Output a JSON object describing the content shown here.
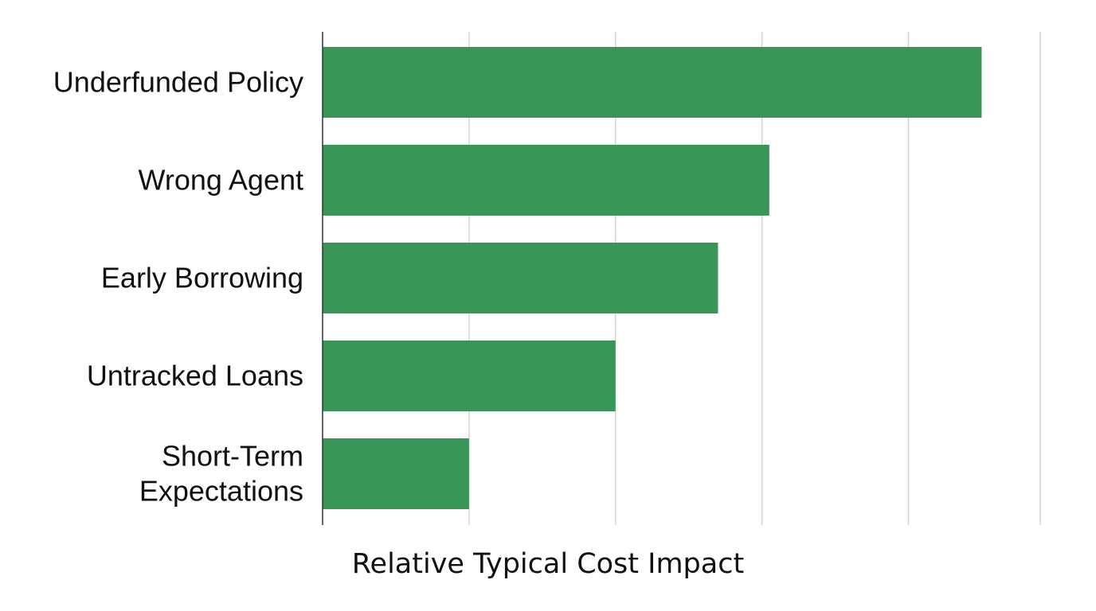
{
  "chart_data": {
    "type": "bar",
    "orientation": "horizontal",
    "categories": [
      [
        "Underfunded Policy"
      ],
      [
        "Wrong Agent"
      ],
      [
        "Early Borrowing"
      ],
      [
        "Untracked Loans"
      ],
      [
        "Short-Term",
        "Expectations"
      ]
    ],
    "values": [
      4.5,
      3.05,
      2.7,
      2.0,
      1.0
    ],
    "xlim": [
      0,
      4.9
    ],
    "gridlines": [
      1,
      2,
      3,
      4,
      4.9
    ],
    "grid": true,
    "xlabel": "Relative Typical Cost Impact",
    "ylabel": "",
    "title": "",
    "bar_color": "#3a9657",
    "legend": "none"
  }
}
